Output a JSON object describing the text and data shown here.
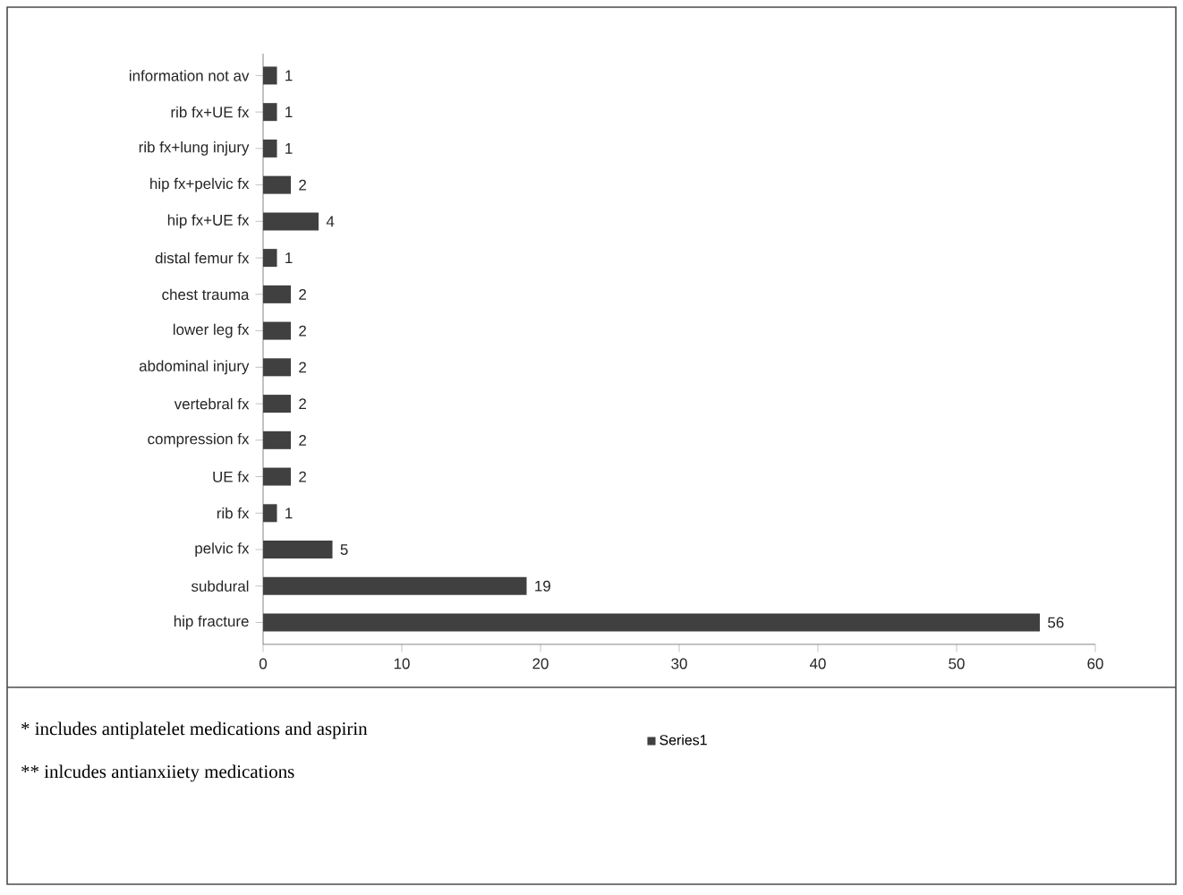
{
  "chart_data": {
    "type": "bar",
    "orientation": "horizontal",
    "categories": [
      "information not av",
      "rib fx+UE fx",
      "rib fx+lung injury",
      "hip fx+pelvic fx",
      "hip fx+UE fx",
      "distal femur fx",
      "chest trauma",
      "lower leg fx",
      "abdominal injury",
      "vertebral fx",
      "compression fx",
      "UE fx",
      "rib fx",
      "pelvic fx",
      "subdural",
      "hip fracture"
    ],
    "series": [
      {
        "name": "Series1",
        "color": "#404040",
        "values": [
          1,
          1,
          1,
          2,
          4,
          1,
          2,
          2,
          2,
          2,
          2,
          2,
          1,
          5,
          19,
          56
        ]
      }
    ],
    "xlim": [
      0,
      60
    ],
    "xticks": [
      0,
      10,
      20,
      30,
      40,
      50,
      60
    ],
    "data_labels": true,
    "legend": "bottom",
    "grid": false,
    "annotations": [
      "* includes antiplatelet medications and aspirin",
      "** inlcudes antianxiiety medications"
    ]
  }
}
